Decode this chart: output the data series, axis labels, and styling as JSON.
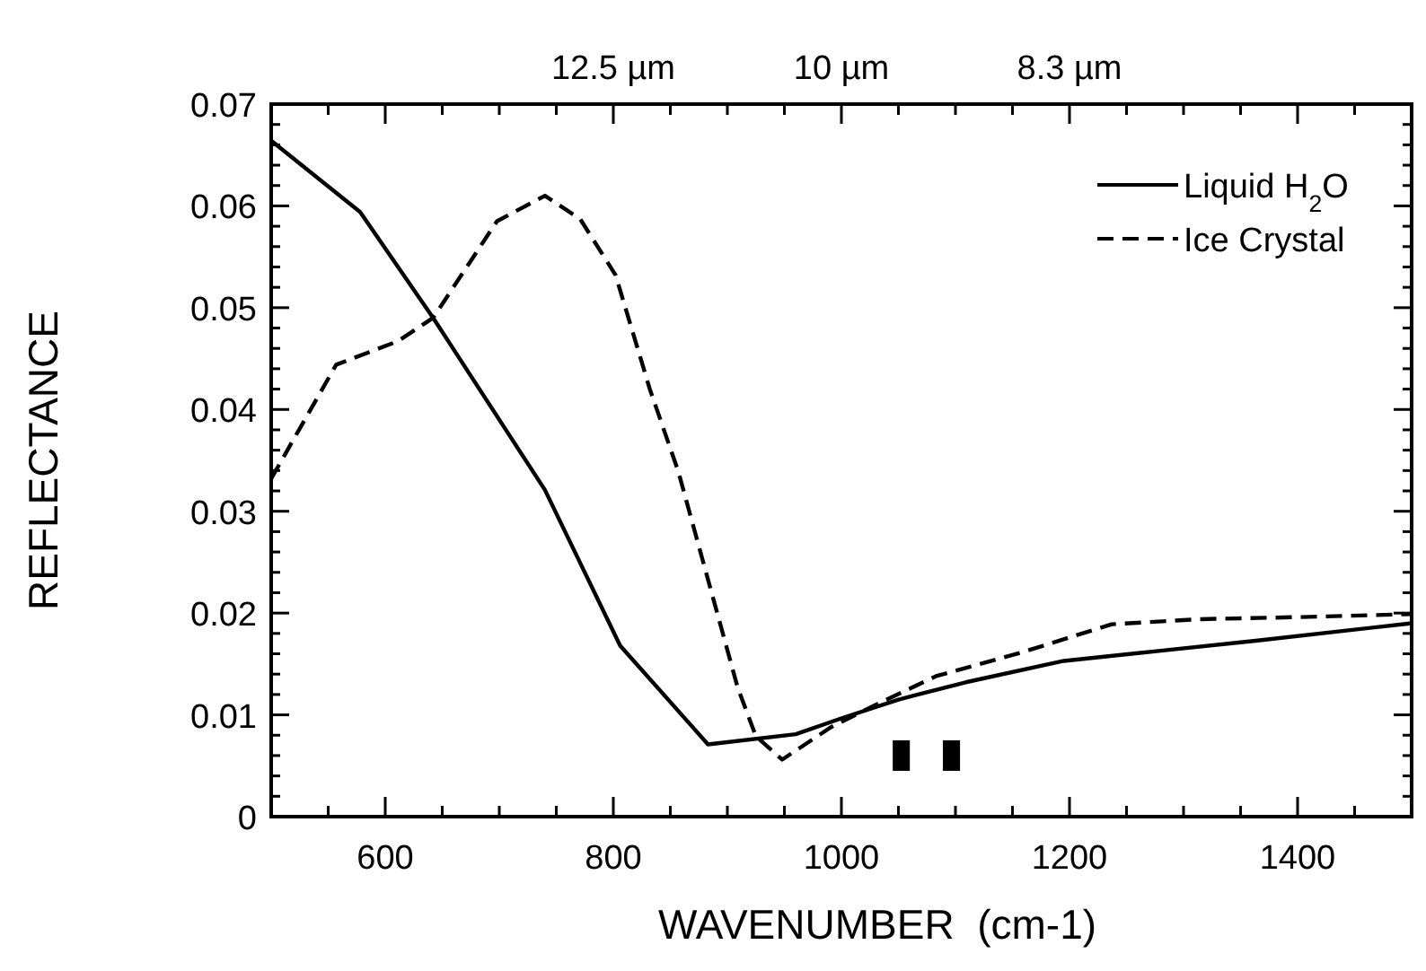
{
  "chart_data": {
    "type": "line",
    "xlabel": "WAVENUMBER  (cm-1)",
    "ylabel": "REFLECTANCE",
    "xlim": [
      500,
      1500
    ],
    "ylim": [
      0,
      0.07
    ],
    "xticks": [
      {
        "value": 550,
        "label": null
      },
      600,
      {
        "value": 650,
        "label": null
      },
      {
        "value": 700,
        "label": null
      },
      {
        "value": 750,
        "label": null
      },
      800,
      {
        "value": 850,
        "label": null
      },
      {
        "value": 900,
        "label": null
      },
      {
        "value": 950,
        "label": null
      },
      1000,
      {
        "value": 1050,
        "label": null
      },
      {
        "value": 1100,
        "label": null
      },
      {
        "value": 1150,
        "label": null
      },
      1200,
      {
        "value": 1250,
        "label": null
      },
      {
        "value": 1300,
        "label": null
      },
      {
        "value": 1350,
        "label": null
      },
      1400,
      {
        "value": 1450,
        "label": null
      }
    ],
    "annotations": [
      "12.5 µm",
      "10 µm",
      "8.3 µm"
    ],
    "yticks": [
      0,
      {
        "value": 0.002,
        "label": null
      },
      {
        "value": 0.004,
        "label": null
      },
      {
        "value": 0.006,
        "label": null
      },
      {
        "value": 0.008,
        "label": null
      },
      0.01,
      {
        "value": 0.012,
        "label": null
      },
      {
        "value": 0.014,
        "label": null
      },
      {
        "value": 0.016,
        "label": null
      },
      {
        "value": 0.018,
        "label": null
      },
      0.02,
      {
        "value": 0.022,
        "label": null
      },
      {
        "value": 0.024,
        "label": null
      },
      {
        "value": 0.026,
        "label": null
      },
      {
        "value": 0.028,
        "label": null
      },
      0.03,
      {
        "value": 0.032,
        "label": null
      },
      {
        "value": 0.034,
        "label": null
      },
      {
        "value": 0.036,
        "label": null
      },
      {
        "value": 0.038,
        "label": null
      },
      0.04,
      {
        "value": 0.042,
        "label": null
      },
      {
        "value": 0.044,
        "label": null
      },
      {
        "value": 0.046,
        "label": null
      },
      {
        "value": 0.048,
        "label": null
      },
      0.05,
      {
        "value": 0.052,
        "label": null
      },
      {
        "value": 0.054,
        "label": null
      },
      {
        "value": 0.056,
        "label": null
      },
      {
        "value": 0.058,
        "label": null
      },
      0.06,
      {
        "value": 0.062,
        "label": null
      },
      {
        "value": 0.064,
        "label": null
      },
      {
        "value": 0.066,
        "label": null
      },
      {
        "value": 0.068,
        "label": null
      },
      0.07
    ],
    "grid": false,
    "legend": "top right",
    "series": [
      {
        "name": "Liquid H$_{2}$O",
        "color": "#000000",
        "line_style": "solid",
        "x": [
          500,
          578,
          642,
          740,
          806,
          883,
          960,
          1001,
          1050,
          1109,
          1195,
          1280,
          1365,
          1500
        ],
        "values": [
          0.0664,
          0.0594,
          0.049,
          0.0321,
          0.0168,
          0.0071,
          0.0081,
          0.0097,
          0.0115,
          0.0132,
          0.0153,
          0.0163,
          0.0173,
          0.019
        ]
      },
      {
        "name": "Ice Crystal",
        "color": "#000000",
        "line_style": "dashed",
        "x": [
          500,
          557,
          611,
          642,
          698,
          740,
          771,
          802,
          832,
          857,
          883,
          909,
          925,
          948,
          991,
          1032,
          1083,
          1160,
          1237,
          1314,
          1400,
          1500
        ],
        "values": [
          0.0332,
          0.0444,
          0.0467,
          0.049,
          0.0585,
          0.061,
          0.0587,
          0.0532,
          0.042,
          0.0339,
          0.0233,
          0.0127,
          0.0079,
          0.0056,
          0.0088,
          0.0111,
          0.0138,
          0.0162,
          0.0189,
          0.0194,
          0.0196,
          0.0199
        ]
      }
    ]
  }
}
